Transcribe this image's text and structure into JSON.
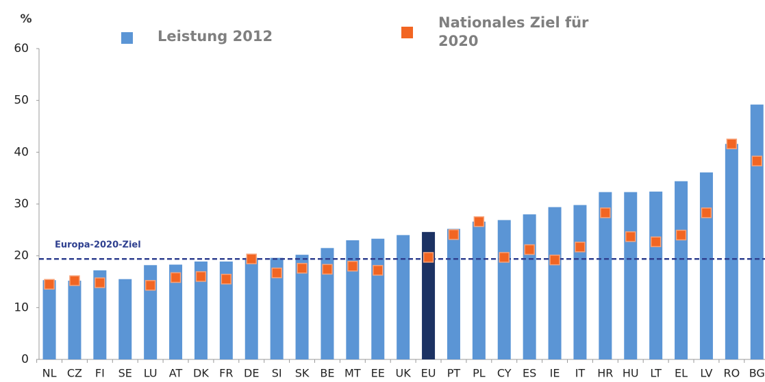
{
  "chart_data": {
    "type": "bar",
    "y_label": "%",
    "categories": [
      "NL",
      "CZ",
      "FI",
      "SE",
      "LU",
      "AT",
      "DK",
      "FR",
      "DE",
      "SI",
      "SK",
      "BE",
      "MT",
      "EE",
      "UK",
      "EU",
      "PT",
      "PL",
      "CY",
      "ES",
      "IE",
      "IT",
      "HR",
      "HU",
      "LT",
      "EL",
      "LV",
      "RO",
      "BG"
    ],
    "series": [
      {
        "name": "Leistung 2012",
        "color": "#5b95d5",
        "values": [
          15.3,
          15.2,
          17.2,
          15.5,
          18.2,
          18.3,
          18.9,
          18.9,
          19.6,
          19.6,
          20.2,
          21.5,
          23.0,
          23.3,
          24.0,
          24.6,
          25.2,
          26.6,
          26.9,
          28.0,
          29.4,
          29.8,
          32.3,
          32.3,
          32.4,
          34.4,
          36.1,
          41.6,
          49.2
        ]
      },
      {
        "name": "Nationales Ziel für 2020",
        "color": "#f26522",
        "marker": "square",
        "values": [
          14.5,
          15.2,
          14.8,
          null,
          14.3,
          15.8,
          16.0,
          15.5,
          19.4,
          16.7,
          17.6,
          17.4,
          18.0,
          17.2,
          null,
          19.7,
          24.1,
          26.6,
          19.7,
          21.2,
          19.2,
          21.7,
          28.3,
          23.7,
          22.7,
          24.0,
          28.3,
          41.6,
          38.3
        ]
      }
    ],
    "highlight_category": "EU",
    "highlight_color": "#1c3263",
    "reference_line": {
      "value": 19.4,
      "label": "Europa-2020-Ziel",
      "color": "#2e3f8f"
    },
    "ylim": [
      0,
      60
    ],
    "yticks": [
      0,
      10,
      20,
      30,
      40,
      50,
      60
    ],
    "grid": false
  }
}
